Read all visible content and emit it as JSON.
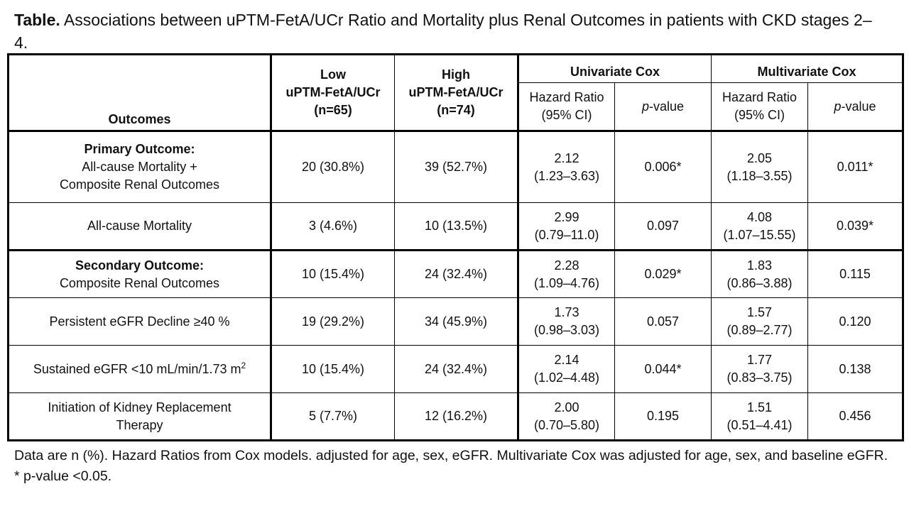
{
  "title": {
    "label": "Table.",
    "text": "Associations between uPTM-FetA/UCr Ratio and Mortality plus Renal Outcomes in patients with CKD stages 2–4."
  },
  "header": {
    "outcomes": "Outcomes",
    "low_group": {
      "line1": "Low",
      "line2": "uPTM-FetA/UCr",
      "line3": "(n=65)"
    },
    "high_group": {
      "line1": "High",
      "line2": "uPTM-FetA/UCr",
      "line3": "(n=74)"
    },
    "univariate": "Univariate Cox",
    "multivariate": "Multivariate Cox",
    "hazard_ratio": {
      "line1": "Hazard Ratio",
      "line2": "(95% CI)"
    },
    "p_italic": "p",
    "p_suffix": "-value"
  },
  "rows": [
    {
      "title": "Primary Outcome:",
      "line1": "All-cause Mortality +",
      "line2": "Composite Renal Outcomes",
      "low": "20 (30.8%)",
      "high": "39 (52.7%)",
      "uni_hr": "2.12",
      "uni_ci": "(1.23–3.63)",
      "uni_p": "0.006*",
      "multi_hr": "2.05",
      "multi_ci": "(1.18–3.55)",
      "multi_p": "0.011*"
    },
    {
      "label": "All-cause Mortality",
      "low": "3 (4.6%)",
      "high": "10 (13.5%)",
      "uni_hr": "2.99",
      "uni_ci": "(0.79–11.0)",
      "uni_p": "0.097",
      "multi_hr": "4.08",
      "multi_ci": "(1.07–15.55)",
      "multi_p": "0.039*"
    },
    {
      "title": "Secondary Outcome:",
      "line1": "Composite Renal Outcomes",
      "low": "10 (15.4%)",
      "high": "24 (32.4%)",
      "uni_hr": "2.28",
      "uni_ci": "(1.09–4.76)",
      "uni_p": "0.029*",
      "multi_hr": "1.83",
      "multi_ci": "(0.86–3.88)",
      "multi_p": "0.115"
    },
    {
      "label": "Persistent eGFR Decline ≥40 %",
      "low": "19 (29.2%)",
      "high": "34 (45.9%)",
      "uni_hr": "1.73",
      "uni_ci": "(0.98–3.03)",
      "uni_p": "0.057",
      "multi_hr": "1.57",
      "multi_ci": "(0.89–2.77)",
      "multi_p": "0.120"
    },
    {
      "label": "Sustained eGFR <10 mL/min/1.73 m",
      "label_sup": "2",
      "low": "10 (15.4%)",
      "high": "24 (32.4%)",
      "uni_hr": "2.14",
      "uni_ci": "(1.02–4.48)",
      "uni_p": "0.044*",
      "multi_hr": "1.77",
      "multi_ci": "(0.83–3.75)",
      "multi_p": "0.138"
    },
    {
      "line1": "Initiation of Kidney Replacement",
      "line2": "Therapy",
      "low": "5 (7.7%)",
      "high": "12 (16.2%)",
      "uni_hr": "2.00",
      "uni_ci": "(0.70–5.80)",
      "uni_p": "0.195",
      "multi_hr": "1.51",
      "multi_ci": "(0.51–4.41)",
      "multi_p": "0.456"
    }
  ],
  "footnote": "Data are n (%). Hazard Ratios from Cox models. adjusted for age, sex, eGFR. Multivariate Cox was adjusted for age, sex, and baseline eGFR. * p-value <0.05."
}
